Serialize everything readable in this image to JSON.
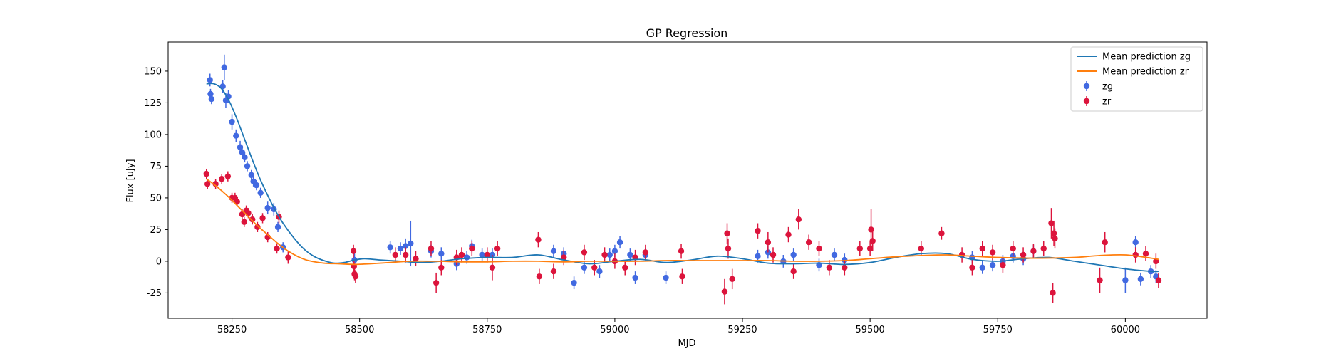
{
  "chart_data": {
    "type": "scatter",
    "title": "GP Regression",
    "xlabel": "MJD",
    "ylabel": "Flux [uJy]",
    "xlim": [
      58125,
      60160
    ],
    "ylim": [
      -45,
      173
    ],
    "x_ticks": [
      58250,
      58500,
      58750,
      59000,
      59250,
      59500,
      59750,
      60000
    ],
    "y_ticks": [
      -25,
      0,
      25,
      50,
      75,
      100,
      125,
      150
    ],
    "grid": false,
    "legend_position": "top-right",
    "colors": {
      "zg_line": "#1f77b4",
      "zr_line": "#ff7f0e",
      "zg_points": "#4169e1",
      "zr_points": "#dc143c"
    },
    "mean_predictions": [
      {
        "name": "Mean prediction zg",
        "x": [
          58200,
          58215,
          58230,
          58245,
          58260,
          58275,
          58290,
          58305,
          58320,
          58335,
          58350,
          58370,
          58390,
          58410,
          58430,
          58450,
          58470,
          58490,
          58510,
          58540,
          58580,
          58620,
          58660,
          58700,
          58750,
          58800,
          58850,
          58900,
          58950,
          59000,
          59050,
          59100,
          59150,
          59200,
          59250,
          59300,
          59350,
          59400,
          59450,
          59500,
          59550,
          59600,
          59650,
          59700,
          59750,
          59800,
          59850,
          59900,
          59950,
          60000,
          60050,
          60065
        ],
        "y": [
          140,
          140,
          136,
          126,
          112,
          96,
          80,
          65,
          52,
          40,
          30,
          19,
          10,
          4,
          0.5,
          -1.5,
          -1,
          1,
          2,
          1,
          0,
          -1,
          0,
          2,
          3,
          3,
          5,
          1,
          -2,
          0,
          1.5,
          -1,
          1,
          4,
          2,
          -1.5,
          -2,
          -1.5,
          -2.5,
          -1,
          3,
          6,
          6,
          1.5,
          0,
          2,
          3,
          0,
          -3,
          -6,
          -8,
          -8
        ]
      },
      {
        "name": "Mean prediction zr",
        "x": [
          58200,
          58220,
          58240,
          58260,
          58280,
          58300,
          58320,
          58340,
          58360,
          58380,
          58400,
          58430,
          58460,
          58490,
          58520,
          58560,
          58600,
          58650,
          58700,
          58750,
          58800,
          58850,
          58900,
          58950,
          59000,
          59050,
          59100,
          59150,
          59200,
          59250,
          59300,
          59350,
          59400,
          59450,
          59500,
          59550,
          59600,
          59650,
          59700,
          59750,
          59800,
          59850,
          59900,
          59950,
          60000,
          60050,
          60065
        ],
        "y": [
          65,
          59,
          52,
          44,
          36,
          28,
          21,
          14,
          8,
          3.5,
          0.5,
          -1.5,
          -2,
          -2.5,
          -2,
          -1,
          0,
          0,
          -0.5,
          -0.5,
          0,
          0,
          -0.5,
          0,
          0,
          0,
          0.5,
          0.5,
          0.5,
          0.5,
          0.5,
          0,
          0,
          0.5,
          2,
          3.5,
          4.5,
          5,
          4,
          3,
          2.5,
          2.5,
          3,
          4.5,
          5,
          2.5,
          1.5
        ]
      }
    ],
    "series": [
      {
        "name": "zg",
        "x": [
          58207,
          58208,
          58210,
          58232,
          58235,
          58238,
          58243,
          58250,
          58258,
          58266,
          58270,
          58275,
          58280,
          58288,
          58292,
          58298,
          58306,
          58320,
          58332,
          58340,
          58350,
          58490,
          58560,
          58580,
          58590,
          58600,
          58640,
          58660,
          58690,
          58710,
          58720,
          58740,
          58760,
          58880,
          58900,
          58920,
          58940,
          58970,
          58990,
          59000,
          59010,
          59030,
          59040,
          59060,
          59100,
          59280,
          59300,
          59330,
          59350,
          59400,
          59430,
          59450,
          59700,
          59720,
          59740,
          59760,
          59780,
          59800,
          59820,
          60000,
          60020,
          60030,
          60050,
          60060
        ],
        "y": [
          143,
          132,
          128,
          138,
          153,
          127,
          130,
          110,
          99,
          90,
          86,
          82,
          75,
          68,
          63,
          60,
          54,
          42,
          41,
          27,
          11,
          1,
          11,
          10,
          12,
          14,
          8,
          6,
          -2,
          3,
          12,
          5,
          5,
          8,
          6,
          -17,
          -5,
          -8,
          5,
          8,
          15,
          5,
          -13,
          5,
          -13,
          4,
          7,
          0,
          5,
          -3,
          5,
          1,
          3,
          -5,
          -3,
          0,
          4,
          2,
          8,
          -15,
          15,
          -14,
          -8,
          -12
        ],
        "err": [
          5,
          4,
          4,
          5,
          10,
          6,
          5,
          6,
          5,
          5,
          5,
          4,
          4,
          4,
          4,
          4,
          4,
          5,
          5,
          4,
          4,
          5,
          5,
          5,
          6,
          18,
          5,
          5,
          5,
          5,
          5,
          5,
          5,
          5,
          5,
          5,
          5,
          5,
          5,
          5,
          5,
          5,
          5,
          5,
          5,
          5,
          5,
          5,
          5,
          5,
          5,
          5,
          5,
          5,
          5,
          5,
          5,
          5,
          5,
          10,
          5,
          5,
          5,
          5
        ]
      },
      {
        "name": "zr",
        "x": [
          58200,
          58202,
          58218,
          58230,
          58242,
          58250,
          58256,
          58260,
          58270,
          58274,
          58278,
          58282,
          58290,
          58300,
          58310,
          58320,
          58338,
          58342,
          58360,
          58488,
          58489,
          58490,
          58492,
          58570,
          58590,
          58610,
          58640,
          58650,
          58660,
          58690,
          58700,
          58720,
          58750,
          58760,
          58770,
          58850,
          58852,
          58880,
          58900,
          58940,
          58960,
          58980,
          59000,
          59020,
          59040,
          59060,
          59130,
          59132,
          59215,
          59220,
          59222,
          59230,
          59280,
          59300,
          59310,
          59340,
          59350,
          59360,
          59380,
          59400,
          59420,
          59450,
          59480,
          59500,
          59502,
          59505,
          59600,
          59640,
          59680,
          59700,
          59720,
          59740,
          59760,
          59780,
          59800,
          59820,
          59840,
          59855,
          59858,
          59860,
          59862,
          59950,
          59960,
          60020,
          60040,
          60060,
          60065
        ],
        "y": [
          69,
          61,
          61,
          65,
          67,
          50,
          50,
          47,
          37,
          31,
          40,
          38,
          33,
          27,
          34,
          19,
          10,
          35,
          3,
          8,
          -4,
          -10,
          -12,
          5,
          5,
          2,
          10,
          -17,
          -5,
          3,
          5,
          10,
          5,
          -5,
          10,
          17,
          -12,
          -8,
          3,
          7,
          -5,
          5,
          0,
          -5,
          3,
          7,
          8,
          -12,
          -24,
          22,
          10,
          -14,
          24,
          15,
          5,
          21,
          -8,
          33,
          15,
          10,
          -5,
          -5,
          10,
          10,
          25,
          16,
          10,
          22,
          5,
          -5,
          10,
          7,
          -3,
          10,
          5,
          8,
          10,
          30,
          -25,
          22,
          18,
          -15,
          15,
          5,
          6,
          0,
          -15
        ],
        "err": [
          4,
          4,
          4,
          4,
          4,
          4,
          4,
          4,
          4,
          4,
          4,
          4,
          4,
          4,
          4,
          4,
          4,
          5,
          5,
          5,
          5,
          5,
          5,
          6,
          6,
          6,
          6,
          8,
          6,
          6,
          6,
          6,
          6,
          10,
          6,
          6,
          6,
          6,
          6,
          6,
          6,
          6,
          6,
          6,
          6,
          6,
          6,
          6,
          10,
          8,
          8,
          8,
          6,
          8,
          6,
          6,
          6,
          8,
          6,
          6,
          6,
          6,
          6,
          6,
          16,
          8,
          6,
          5,
          6,
          6,
          6,
          6,
          6,
          6,
          6,
          6,
          6,
          12,
          8,
          10,
          8,
          10,
          8,
          6,
          6,
          6,
          6
        ]
      }
    ]
  }
}
